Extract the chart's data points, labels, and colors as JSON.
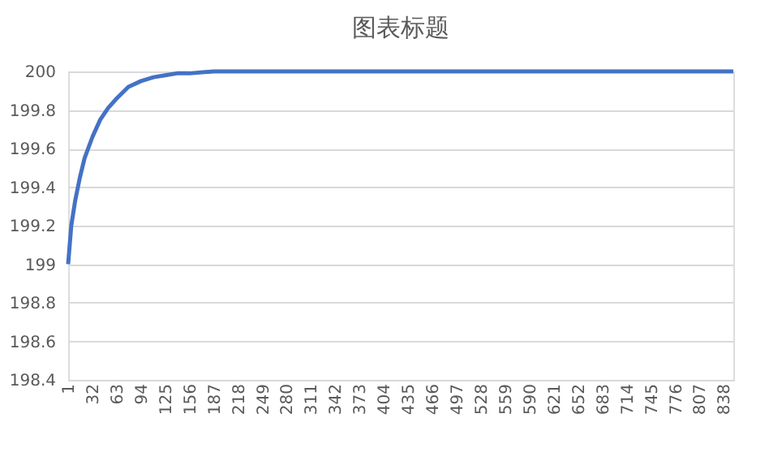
{
  "chart_data": {
    "type": "line",
    "title": "图表标题",
    "x": [
      1,
      5,
      10,
      16,
      22,
      32,
      42,
      52,
      63,
      78,
      94,
      110,
      125,
      140,
      156,
      187,
      250,
      400,
      600,
      850
    ],
    "series": [
      {
        "color": "#4472c4",
        "values": [
          199.0,
          199.2,
          199.33,
          199.45,
          199.55,
          199.66,
          199.75,
          199.81,
          199.86,
          199.92,
          199.95,
          199.97,
          199.98,
          199.99,
          199.99,
          200.0,
          200.0,
          200.0,
          200.0,
          200.0
        ]
      }
    ],
    "xlim": [
      1,
      850
    ],
    "xticks": [
      1,
      32,
      63,
      94,
      125,
      156,
      187,
      218,
      249,
      280,
      311,
      342,
      373,
      404,
      435,
      466,
      497,
      528,
      559,
      590,
      621,
      652,
      683,
      714,
      745,
      776,
      807,
      838
    ],
    "ylim": [
      198.4,
      200
    ],
    "yticks": [
      198.4,
      198.6,
      198.8,
      199,
      199.2,
      199.4,
      199.6,
      199.8,
      200
    ],
    "grid": "y",
    "marker": "none",
    "line_style": "solid"
  }
}
